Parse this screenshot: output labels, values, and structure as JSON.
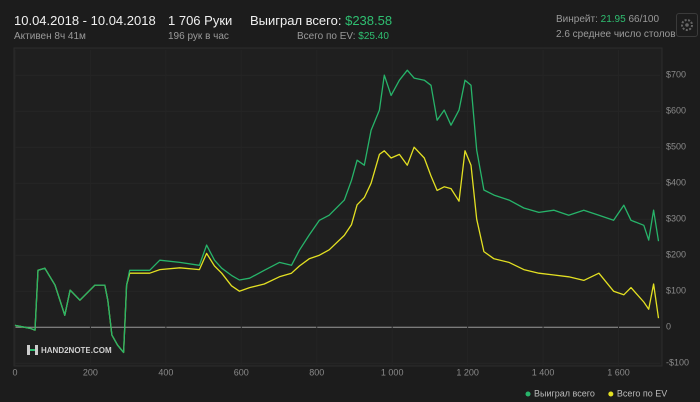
{
  "header": {
    "date_range": "10.04.2018 - 10.04.2018",
    "active": "Активен 8ч 41м",
    "hands": "1 706 Руки",
    "hands_per_hour": "196 рук в час",
    "won_label": "Выиграл всего:",
    "won_value": "$238.58",
    "ev_label": "Всего по EV:",
    "ev_value": "$25.40",
    "winrate_label": "Винрейт:",
    "winrate_value": "21.95",
    "winrate_unit": "66/100",
    "tables": "2.6 среднее число столов",
    "logo": "HAND2NOTE.COM"
  },
  "chart_data": {
    "type": "line",
    "x": [
      0,
      40,
      53,
      61,
      79,
      106,
      119,
      132,
      146,
      172,
      212,
      238,
      246,
      257,
      272,
      288,
      296,
      304,
      357,
      384,
      437,
      489,
      508,
      529,
      548,
      574,
      595,
      622,
      661,
      701,
      733,
      754,
      780,
      807,
      833,
      873,
      892,
      907,
      926,
      944,
      966,
      979,
      997,
      1019,
      1040,
      1058,
      1085,
      1103,
      1119,
      1138,
      1156,
      1177,
      1193,
      1209,
      1224,
      1243,
      1270,
      1310,
      1349,
      1389,
      1429,
      1468,
      1508,
      1548,
      1587,
      1614,
      1633,
      1667,
      1680,
      1693,
      1706
    ],
    "series": [
      {
        "name": "Выиграл всего",
        "color": "#27b46a",
        "values": [
          5,
          -3,
          -8,
          158,
          164,
          117,
          75,
          33,
          103,
          75,
          117,
          117,
          75,
          -22,
          -50,
          -70,
          117,
          158,
          158,
          186,
          180,
          172,
          228,
          186,
          164,
          144,
          131,
          136,
          158,
          180,
          172,
          214,
          256,
          297,
          311,
          353,
          408,
          464,
          450,
          547,
          603,
          700,
          644,
          686,
          714,
          692,
          686,
          672,
          575,
          603,
          561,
          603,
          686,
          672,
          492,
          381,
          367,
          353,
          331,
          319,
          325,
          311,
          325,
          311,
          297,
          339,
          297,
          283,
          242,
          325,
          239
        ]
      },
      {
        "name": "Всего по EV",
        "color": "#e3e022",
        "values": [
          5,
          -3,
          -8,
          158,
          164,
          117,
          75,
          33,
          103,
          75,
          117,
          117,
          75,
          -22,
          -50,
          -70,
          117,
          150,
          150,
          160,
          165,
          160,
          205,
          170,
          150,
          115,
          100,
          110,
          120,
          140,
          150,
          170,
          190,
          200,
          215,
          255,
          285,
          340,
          360,
          400,
          480,
          490,
          470,
          480,
          450,
          500,
          470,
          420,
          380,
          390,
          385,
          350,
          490,
          450,
          300,
          210,
          190,
          180,
          160,
          150,
          145,
          140,
          130,
          150,
          100,
          90,
          110,
          70,
          50,
          120,
          25
        ]
      }
    ],
    "xlim": [
      0,
      1710
    ],
    "ylim": [
      -105,
      770
    ],
    "xticks": [
      0,
      200,
      400,
      600,
      800,
      {
        "value": 1000,
        "label": "1 000"
      },
      {
        "value": 1200,
        "label": "1 200"
      },
      {
        "value": 1400,
        "label": "1 400"
      },
      {
        "value": 1600,
        "label": "1 600"
      }
    ],
    "yticks": [
      {
        "value": -100,
        "label": "-$100"
      },
      0,
      {
        "value": 100,
        "label": "$100"
      },
      {
        "value": 200,
        "label": "$200"
      },
      {
        "value": 300,
        "label": "$300"
      },
      {
        "value": 400,
        "label": "$400"
      },
      {
        "value": 500,
        "label": "$500"
      },
      {
        "value": 600,
        "label": "$600"
      },
      {
        "value": 700,
        "label": "$700"
      }
    ],
    "grid": true,
    "legend": "bottom-right"
  }
}
